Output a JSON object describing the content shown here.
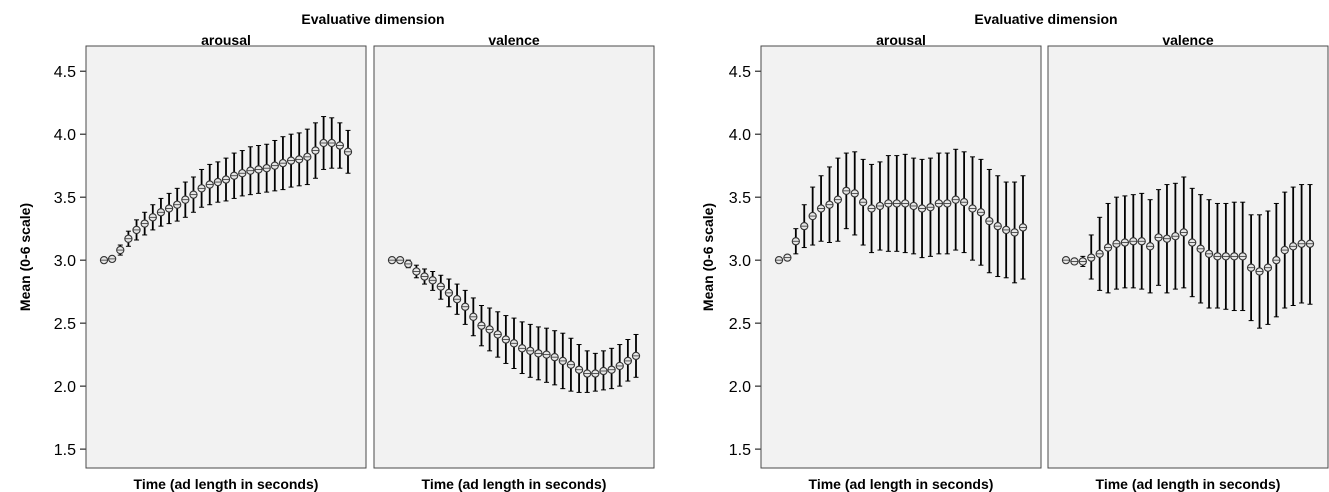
{
  "chart_data": [
    {
      "type": "scatter",
      "title": "Evaluative dimension",
      "ylabel": "Mean (0-6 scale)",
      "xlabel": "Time (ad length in seconds)",
      "ylim": [
        1.35,
        4.7
      ],
      "yticks": [
        "1.5",
        "2.0",
        "2.5",
        "3.0",
        "3.5",
        "4.0",
        "4.5"
      ],
      "grid": false,
      "facets": [
        {
          "name": "arousal",
          "mean": [
            3.0,
            3.01,
            3.08,
            3.17,
            3.24,
            3.29,
            3.34,
            3.38,
            3.41,
            3.44,
            3.48,
            3.52,
            3.57,
            3.6,
            3.62,
            3.64,
            3.67,
            3.69,
            3.71,
            3.72,
            3.73,
            3.75,
            3.77,
            3.79,
            3.8,
            3.82,
            3.87,
            3.93,
            3.93,
            3.91,
            3.86
          ],
          "lower": [
            3.0,
            3.0,
            3.04,
            3.11,
            3.16,
            3.2,
            3.24,
            3.27,
            3.29,
            3.31,
            3.34,
            3.38,
            3.42,
            3.44,
            3.46,
            3.47,
            3.49,
            3.51,
            3.52,
            3.53,
            3.54,
            3.55,
            3.56,
            3.58,
            3.59,
            3.6,
            3.65,
            3.72,
            3.73,
            3.73,
            3.69
          ],
          "upper": [
            3.0,
            3.02,
            3.12,
            3.23,
            3.32,
            3.38,
            3.44,
            3.49,
            3.53,
            3.57,
            3.62,
            3.66,
            3.72,
            3.76,
            3.78,
            3.81,
            3.85,
            3.87,
            3.9,
            3.91,
            3.92,
            3.95,
            3.98,
            4.0,
            4.01,
            4.04,
            4.09,
            4.14,
            4.13,
            4.09,
            4.03
          ]
        },
        {
          "name": "valence",
          "mean": [
            3.0,
            3.0,
            2.97,
            2.91,
            2.87,
            2.84,
            2.79,
            2.74,
            2.69,
            2.63,
            2.55,
            2.48,
            2.45,
            2.41,
            2.37,
            2.34,
            2.3,
            2.28,
            2.26,
            2.25,
            2.23,
            2.2,
            2.17,
            2.13,
            2.1,
            2.1,
            2.12,
            2.13,
            2.16,
            2.2,
            2.24
          ],
          "lower": [
            3.0,
            2.99,
            2.94,
            2.86,
            2.81,
            2.76,
            2.69,
            2.63,
            2.57,
            2.49,
            2.4,
            2.32,
            2.28,
            2.23,
            2.18,
            2.14,
            2.1,
            2.07,
            2.05,
            2.03,
            2.01,
            1.98,
            1.96,
            1.95,
            1.95,
            1.96,
            1.97,
            1.98,
            2.0,
            2.04,
            2.07
          ],
          "upper": [
            3.0,
            3.01,
            3.0,
            2.96,
            2.93,
            2.91,
            2.88,
            2.85,
            2.81,
            2.76,
            2.7,
            2.64,
            2.62,
            2.59,
            2.56,
            2.54,
            2.51,
            2.49,
            2.47,
            2.46,
            2.44,
            2.42,
            2.38,
            2.33,
            2.28,
            2.26,
            2.28,
            2.3,
            2.33,
            2.37,
            2.41
          ]
        }
      ]
    },
    {
      "type": "scatter",
      "title": "Evaluative dimension",
      "ylabel": "Mean (0-6 scale)",
      "xlabel": "Time (ad length in seconds)",
      "ylim": [
        1.35,
        4.7
      ],
      "yticks": [
        "1.5",
        "2.0",
        "2.5",
        "3.0",
        "3.5",
        "4.0",
        "4.5"
      ],
      "grid": false,
      "facets": [
        {
          "name": "arousal",
          "mean": [
            3.0,
            3.02,
            3.15,
            3.27,
            3.35,
            3.41,
            3.44,
            3.48,
            3.55,
            3.53,
            3.46,
            3.41,
            3.43,
            3.45,
            3.45,
            3.45,
            3.43,
            3.41,
            3.42,
            3.45,
            3.45,
            3.48,
            3.46,
            3.41,
            3.38,
            3.31,
            3.27,
            3.24,
            3.22,
            3.26
          ],
          "lower": [
            3.0,
            3.0,
            3.05,
            3.1,
            3.12,
            3.15,
            3.14,
            3.15,
            3.25,
            3.2,
            3.12,
            3.06,
            3.08,
            3.07,
            3.07,
            3.06,
            3.05,
            3.02,
            3.03,
            3.05,
            3.05,
            3.08,
            3.06,
            3.0,
            2.96,
            2.9,
            2.87,
            2.86,
            2.82,
            2.85
          ],
          "upper": [
            3.0,
            3.04,
            3.25,
            3.44,
            3.58,
            3.67,
            3.74,
            3.81,
            3.85,
            3.86,
            3.8,
            3.76,
            3.78,
            3.83,
            3.83,
            3.84,
            3.81,
            3.8,
            3.81,
            3.85,
            3.85,
            3.88,
            3.86,
            3.82,
            3.8,
            3.72,
            3.67,
            3.62,
            3.62,
            3.67
          ]
        },
        {
          "name": "valence",
          "mean": [
            3.0,
            2.99,
            2.99,
            3.02,
            3.05,
            3.1,
            3.13,
            3.14,
            3.15,
            3.15,
            3.11,
            3.18,
            3.17,
            3.19,
            3.22,
            3.14,
            3.09,
            3.05,
            3.03,
            3.03,
            3.03,
            3.03,
            2.94,
            2.91,
            2.94,
            3.0,
            3.08,
            3.11,
            3.13,
            3.13
          ],
          "lower": [
            3.0,
            2.98,
            2.95,
            2.85,
            2.76,
            2.74,
            2.77,
            2.78,
            2.78,
            2.77,
            2.74,
            2.8,
            2.74,
            2.77,
            2.78,
            2.71,
            2.66,
            2.62,
            2.62,
            2.61,
            2.6,
            2.6,
            2.52,
            2.46,
            2.49,
            2.55,
            2.62,
            2.64,
            2.66,
            2.65
          ],
          "upper": [
            3.0,
            3.0,
            3.03,
            3.2,
            3.34,
            3.45,
            3.5,
            3.51,
            3.52,
            3.53,
            3.48,
            3.56,
            3.6,
            3.61,
            3.66,
            3.57,
            3.52,
            3.48,
            3.45,
            3.45,
            3.46,
            3.46,
            3.36,
            3.36,
            3.39,
            3.45,
            3.54,
            3.58,
            3.6,
            3.6
          ]
        }
      ]
    }
  ]
}
